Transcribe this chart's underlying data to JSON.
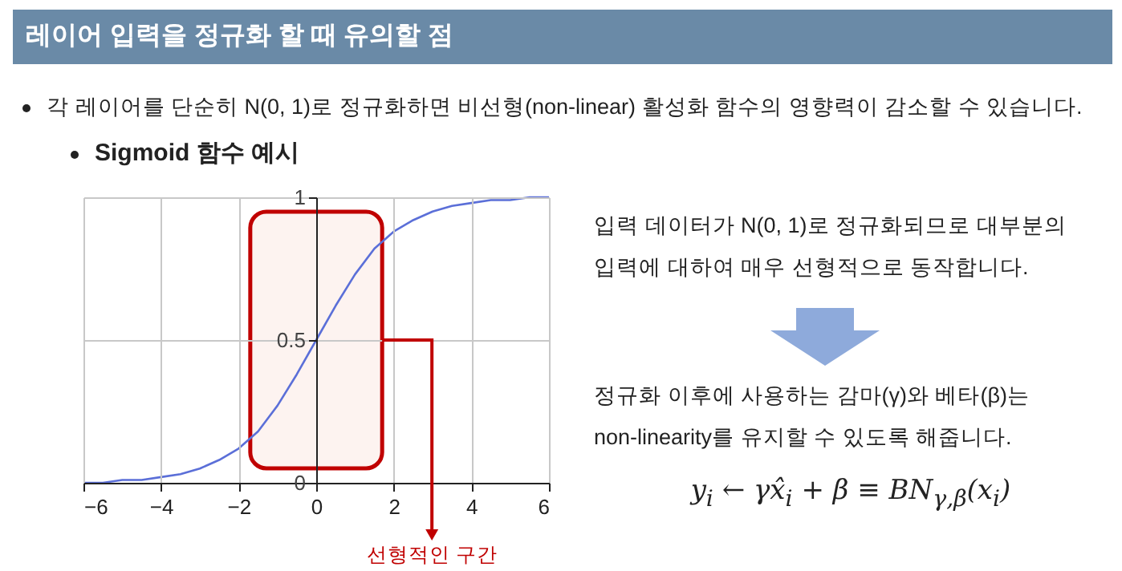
{
  "chart_data": {
    "type": "line",
    "title": "레이어 입력을 정규화 할 때 유의할 점",
    "subtitle": "Sigmoid 함수 예시",
    "annotations": [
      "각 레이어를 단순히 N(0, 1)로 정규화하면 비선형(non-linear) 활성화 함수의 영향력이 감소할 수 있습니다.",
      "입력 데이터가 N(0, 1)로 정규화되므로 대부분의 입력에 대하여 매우 선형적으로 동작합니다.",
      "정규화 이후에 사용하는 감마(γ)와 베타(β)는 non-linearity를 유지할 수 있도록 해줍니다.",
      "y$_{i}$ ← γx̂$_{i}$ + β ≡ BN$_{γ,β}$(x$_{i}$)"
    ],
    "x": [
      -6,
      -5.5,
      -5,
      -4.5,
      -4,
      -3.5,
      -3,
      -2.5,
      -2,
      -1.5,
      -1,
      -0.5,
      0,
      0.5,
      1,
      1.5,
      2,
      2.5,
      3,
      3.5,
      4,
      4.5,
      5,
      5.5,
      6
    ],
    "series": [
      {
        "color": "#5b6fd8",
        "values": [
          0.0,
          0.0,
          0.01,
          0.01,
          0.02,
          0.03,
          0.05,
          0.08,
          0.12,
          0.18,
          0.27,
          0.38,
          0.5,
          0.62,
          0.73,
          0.82,
          0.88,
          0.92,
          0.95,
          0.97,
          0.98,
          0.99,
          0.99,
          1.0,
          1.0
        ]
      }
    ],
    "xlim": [
      -6,
      6
    ],
    "xticks": [
      -6,
      -4,
      -2,
      0,
      2,
      4,
      6
    ],
    "ylim": [
      0,
      1
    ],
    "yticks": [
      0,
      0.5,
      1
    ],
    "grid": true,
    "line_style": "solid",
    "bands": [
      {
        "axis": "x",
        "from": -1.7,
        "to": 1.7,
        "label": "선형적인 구간",
        "color": "#fdf3f0"
      }
    ]
  }
}
